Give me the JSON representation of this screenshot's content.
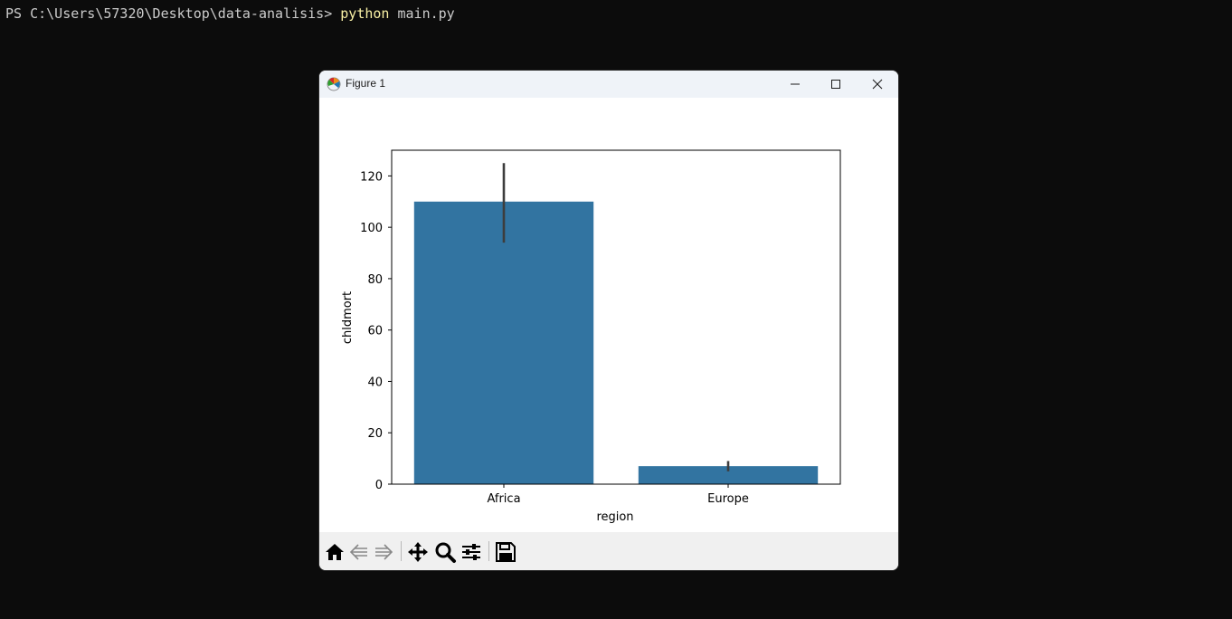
{
  "terminal": {
    "prompt": "PS C:\\Users\\57320\\Desktop\\data-analisis> ",
    "command": "python",
    "argument": " main.py"
  },
  "window": {
    "title": "Figure 1"
  },
  "toolbar": {
    "icons": [
      "home-icon",
      "back-arrow-icon",
      "forward-arrow-icon",
      "pan-icon",
      "zoom-icon",
      "configure-subplots-icon",
      "save-icon"
    ]
  },
  "colors": {
    "bar": "#3274a1",
    "error_bar": "#3d3d3d",
    "terminal_bg": "#0c0c0c",
    "terminal_text": "#cccccc",
    "command_highlight": "#f9f1a5"
  },
  "chart_data": {
    "type": "bar",
    "categories": [
      "Africa",
      "Europe"
    ],
    "values": [
      110,
      7
    ],
    "error_low": [
      94,
      5
    ],
    "error_high": [
      125,
      9
    ],
    "xlabel": "region",
    "ylabel": "chldmort",
    "ylim": [
      0,
      130
    ],
    "yticks": [
      0,
      20,
      40,
      60,
      80,
      100,
      120
    ],
    "grid": false
  }
}
